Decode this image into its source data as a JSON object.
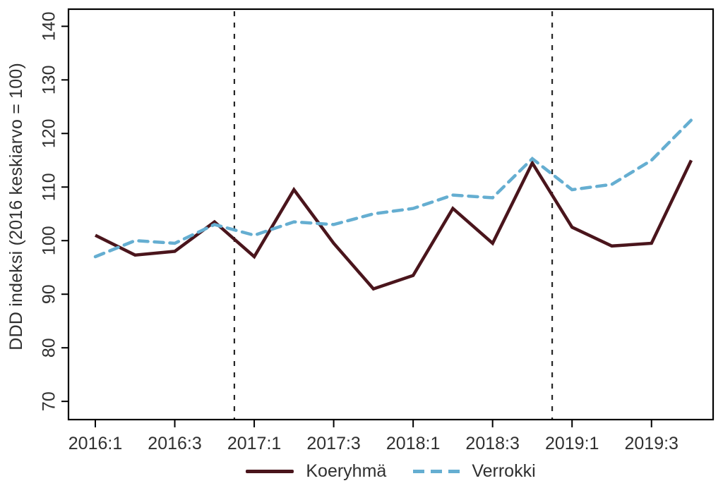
{
  "figure": {
    "background": "#ffffff",
    "frame_color": "#000000",
    "tick_text_color": "#303030"
  },
  "chart_data": {
    "type": "line",
    "title": "",
    "xlabel": "",
    "ylabel": "DDD indeksi (2016 keskiarvo = 100)",
    "x": [
      "2016:1",
      "2016:2",
      "2016:3",
      "2016:4",
      "2017:1",
      "2017:2",
      "2017:3",
      "2017:4",
      "2018:1",
      "2018:2",
      "2018:3",
      "2018:4",
      "2019:1",
      "2019:2",
      "2019:3",
      "2019:4"
    ],
    "x_tick_labels": [
      "2016:1",
      "2016:3",
      "2017:1",
      "2017:3",
      "2018:1",
      "2018:3",
      "2019:1",
      "2019:3"
    ],
    "x_tick_indices": [
      0,
      2,
      4,
      6,
      8,
      10,
      12,
      14
    ],
    "yticks": [
      70,
      80,
      90,
      100,
      110,
      120,
      130,
      140
    ],
    "ylim": [
      66.6,
      143.2
    ],
    "grid": false,
    "legend_position": "bottom",
    "series": [
      {
        "name": "Koeryhmä",
        "style": "solid",
        "color": "#4a151c",
        "values": [
          101,
          97.3,
          98,
          103.5,
          97,
          109.5,
          99.5,
          91,
          93.5,
          106,
          99.5,
          114.5,
          102.5,
          99,
          99.5,
          115
        ]
      },
      {
        "name": "Verrokki",
        "style": "dashed",
        "color": "#65aed1",
        "values": [
          97,
          100,
          99.5,
          103,
          101,
          103.5,
          103,
          105,
          106,
          108.5,
          108,
          115.3,
          109.5,
          110.5,
          115,
          122.5
        ]
      }
    ],
    "vlines": [
      {
        "x_index": 3.5,
        "color": "#262626",
        "style": "dashed"
      },
      {
        "x_index": 11.5,
        "color": "#262626",
        "style": "dashed"
      }
    ]
  }
}
